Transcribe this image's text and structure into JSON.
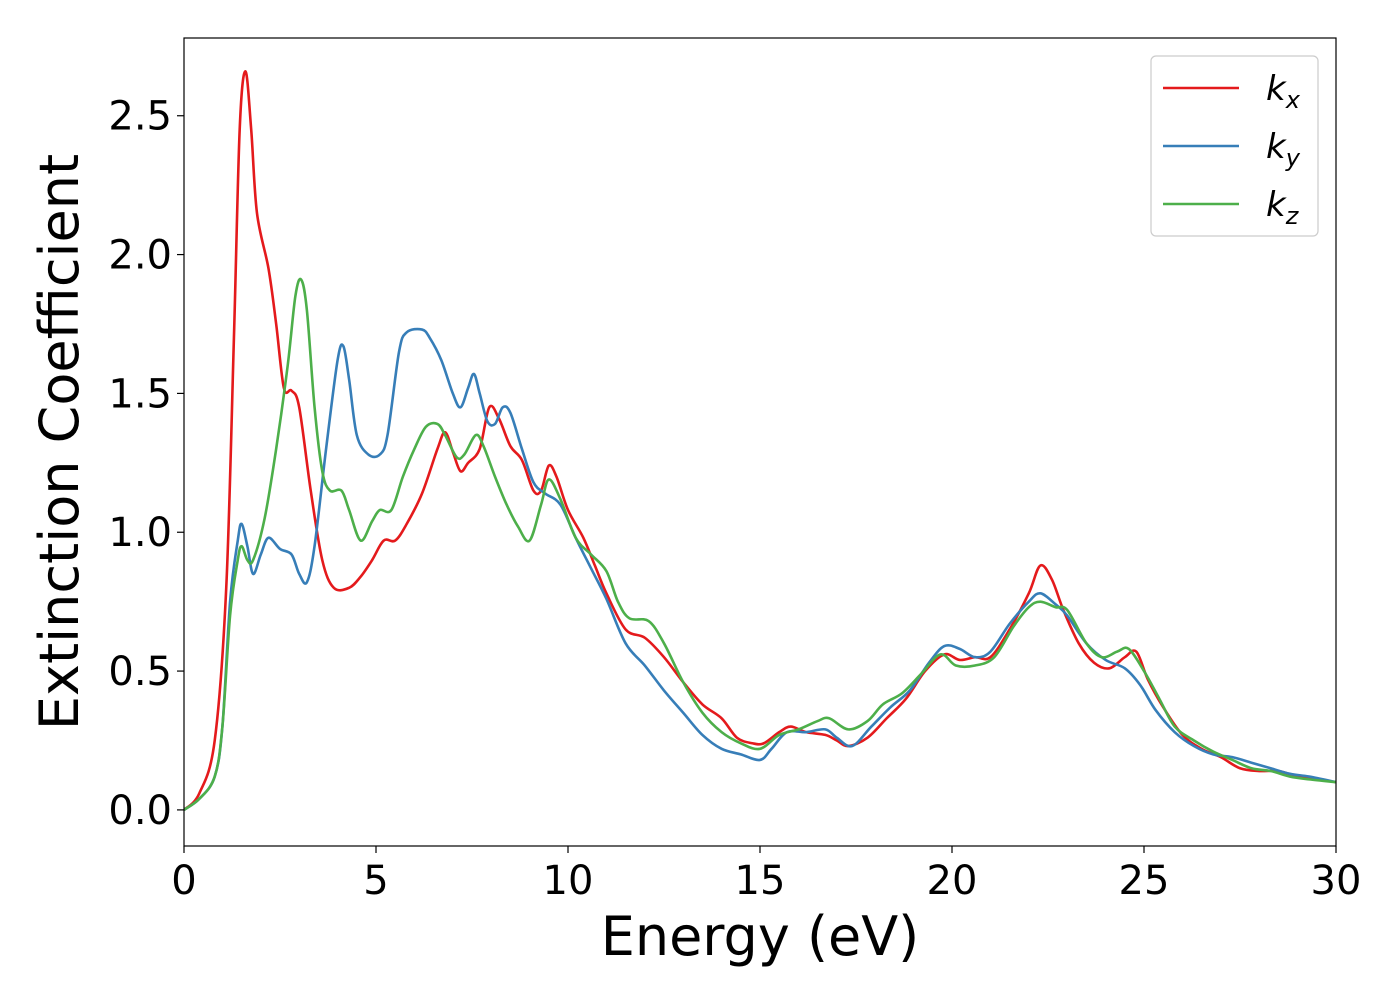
{
  "chart_data": {
    "type": "line",
    "xlabel": "Energy (eV)",
    "ylabel": "Extinction Coefficient",
    "xlim": [
      0,
      30
    ],
    "ylim": [
      -0.13,
      2.78
    ],
    "xticks": [
      0,
      5,
      10,
      15,
      20,
      25,
      30
    ],
    "xtick_labels": [
      "0",
      "5",
      "10",
      "15",
      "20",
      "25",
      "30"
    ],
    "yticks": [
      0.0,
      0.5,
      1.0,
      1.5,
      2.0,
      2.5
    ],
    "ytick_labels": [
      "0.0",
      "0.5",
      "1.0",
      "1.5",
      "2.0",
      "2.5"
    ],
    "grid": false,
    "legend_position": "top-right",
    "series": [
      {
        "name": "k",
        "subscript": "x",
        "color": "#e41a1c",
        "points": [
          [
            0,
            0
          ],
          [
            0.4,
            0.06
          ],
          [
            0.8,
            0.25
          ],
          [
            1.1,
            0.8
          ],
          [
            1.3,
            1.7
          ],
          [
            1.45,
            2.45
          ],
          [
            1.6,
            2.66
          ],
          [
            1.75,
            2.45
          ],
          [
            1.9,
            2.15
          ],
          [
            2.2,
            1.95
          ],
          [
            2.4,
            1.75
          ],
          [
            2.6,
            1.52
          ],
          [
            2.8,
            1.51
          ],
          [
            3.0,
            1.45
          ],
          [
            3.3,
            1.15
          ],
          [
            3.6,
            0.9
          ],
          [
            3.9,
            0.8
          ],
          [
            4.3,
            0.8
          ],
          [
            4.6,
            0.84
          ],
          [
            4.9,
            0.9
          ],
          [
            5.2,
            0.97
          ],
          [
            5.5,
            0.97
          ],
          [
            5.8,
            1.03
          ],
          [
            6.2,
            1.14
          ],
          [
            6.6,
            1.3
          ],
          [
            6.8,
            1.36
          ],
          [
            7.0,
            1.29
          ],
          [
            7.2,
            1.22
          ],
          [
            7.4,
            1.25
          ],
          [
            7.7,
            1.3
          ],
          [
            7.95,
            1.45
          ],
          [
            8.2,
            1.41
          ],
          [
            8.5,
            1.31
          ],
          [
            8.8,
            1.26
          ],
          [
            9.1,
            1.15
          ],
          [
            9.3,
            1.15
          ],
          [
            9.5,
            1.24
          ],
          [
            9.7,
            1.2
          ],
          [
            10.0,
            1.08
          ],
          [
            10.4,
            0.98
          ],
          [
            10.7,
            0.88
          ],
          [
            11.0,
            0.78
          ],
          [
            11.5,
            0.65
          ],
          [
            12.0,
            0.62
          ],
          [
            12.5,
            0.55
          ],
          [
            13.0,
            0.46
          ],
          [
            13.5,
            0.38
          ],
          [
            14.0,
            0.33
          ],
          [
            14.4,
            0.26
          ],
          [
            14.8,
            0.24
          ],
          [
            15.1,
            0.24
          ],
          [
            15.5,
            0.28
          ],
          [
            15.8,
            0.3
          ],
          [
            16.2,
            0.28
          ],
          [
            16.7,
            0.27
          ],
          [
            17.0,
            0.25
          ],
          [
            17.3,
            0.23
          ],
          [
            17.8,
            0.26
          ],
          [
            18.3,
            0.33
          ],
          [
            18.8,
            0.4
          ],
          [
            19.3,
            0.5
          ],
          [
            19.8,
            0.56
          ],
          [
            20.2,
            0.54
          ],
          [
            20.6,
            0.55
          ],
          [
            21.0,
            0.55
          ],
          [
            21.5,
            0.65
          ],
          [
            22.0,
            0.78
          ],
          [
            22.3,
            0.88
          ],
          [
            22.6,
            0.83
          ],
          [
            22.9,
            0.72
          ],
          [
            23.3,
            0.6
          ],
          [
            23.7,
            0.53
          ],
          [
            24.1,
            0.51
          ],
          [
            24.5,
            0.55
          ],
          [
            24.8,
            0.57
          ],
          [
            25.1,
            0.47
          ],
          [
            25.5,
            0.37
          ],
          [
            26.0,
            0.27
          ],
          [
            26.5,
            0.22
          ],
          [
            27.0,
            0.19
          ],
          [
            27.5,
            0.15
          ],
          [
            28.0,
            0.14
          ],
          [
            28.5,
            0.14
          ],
          [
            29.0,
            0.12
          ],
          [
            29.5,
            0.11
          ],
          [
            30,
            0.1
          ]
        ]
      },
      {
        "name": "k",
        "subscript": "y",
        "color": "#377eb8",
        "points": [
          [
            0,
            0
          ],
          [
            0.4,
            0.04
          ],
          [
            0.8,
            0.12
          ],
          [
            1.0,
            0.3
          ],
          [
            1.2,
            0.75
          ],
          [
            1.4,
            0.97
          ],
          [
            1.5,
            1.03
          ],
          [
            1.65,
            0.95
          ],
          [
            1.8,
            0.85
          ],
          [
            2.0,
            0.92
          ],
          [
            2.2,
            0.98
          ],
          [
            2.5,
            0.94
          ],
          [
            2.8,
            0.92
          ],
          [
            3.0,
            0.85
          ],
          [
            3.2,
            0.82
          ],
          [
            3.4,
            0.95
          ],
          [
            3.7,
            1.3
          ],
          [
            4.0,
            1.62
          ],
          [
            4.15,
            1.67
          ],
          [
            4.3,
            1.55
          ],
          [
            4.5,
            1.35
          ],
          [
            4.8,
            1.28
          ],
          [
            5.1,
            1.28
          ],
          [
            5.3,
            1.35
          ],
          [
            5.6,
            1.65
          ],
          [
            5.8,
            1.72
          ],
          [
            6.2,
            1.73
          ],
          [
            6.4,
            1.7
          ],
          [
            6.7,
            1.62
          ],
          [
            7.0,
            1.5
          ],
          [
            7.2,
            1.45
          ],
          [
            7.4,
            1.52
          ],
          [
            7.55,
            1.57
          ],
          [
            7.7,
            1.5
          ],
          [
            7.9,
            1.4
          ],
          [
            8.1,
            1.39
          ],
          [
            8.3,
            1.45
          ],
          [
            8.5,
            1.43
          ],
          [
            8.8,
            1.3
          ],
          [
            9.1,
            1.18
          ],
          [
            9.4,
            1.14
          ],
          [
            9.8,
            1.1
          ],
          [
            10.2,
            0.98
          ],
          [
            10.6,
            0.87
          ],
          [
            11.0,
            0.76
          ],
          [
            11.5,
            0.6
          ],
          [
            12.0,
            0.52
          ],
          [
            12.5,
            0.43
          ],
          [
            13.0,
            0.35
          ],
          [
            13.5,
            0.27
          ],
          [
            14.0,
            0.22
          ],
          [
            14.5,
            0.2
          ],
          [
            15.0,
            0.18
          ],
          [
            15.3,
            0.22
          ],
          [
            15.7,
            0.28
          ],
          [
            16.2,
            0.28
          ],
          [
            16.7,
            0.29
          ],
          [
            17.0,
            0.26
          ],
          [
            17.4,
            0.23
          ],
          [
            17.9,
            0.3
          ],
          [
            18.4,
            0.37
          ],
          [
            18.9,
            0.43
          ],
          [
            19.4,
            0.53
          ],
          [
            19.8,
            0.59
          ],
          [
            20.2,
            0.58
          ],
          [
            20.6,
            0.55
          ],
          [
            21.0,
            0.57
          ],
          [
            21.5,
            0.67
          ],
          [
            22.0,
            0.75
          ],
          [
            22.3,
            0.78
          ],
          [
            22.7,
            0.74
          ],
          [
            23.0,
            0.7
          ],
          [
            23.5,
            0.6
          ],
          [
            24.0,
            0.54
          ],
          [
            24.5,
            0.51
          ],
          [
            24.9,
            0.45
          ],
          [
            25.3,
            0.36
          ],
          [
            25.8,
            0.28
          ],
          [
            26.3,
            0.23
          ],
          [
            26.8,
            0.2
          ],
          [
            27.3,
            0.19
          ],
          [
            27.8,
            0.17
          ],
          [
            28.3,
            0.15
          ],
          [
            28.8,
            0.13
          ],
          [
            29.3,
            0.12
          ],
          [
            30,
            0.1
          ]
        ]
      },
      {
        "name": "k",
        "subscript": "z",
        "color": "#4daf4a",
        "points": [
          [
            0,
            0
          ],
          [
            0.4,
            0.04
          ],
          [
            0.8,
            0.12
          ],
          [
            1.0,
            0.3
          ],
          [
            1.2,
            0.7
          ],
          [
            1.4,
            0.9
          ],
          [
            1.5,
            0.95
          ],
          [
            1.65,
            0.9
          ],
          [
            1.8,
            0.9
          ],
          [
            2.1,
            1.05
          ],
          [
            2.4,
            1.3
          ],
          [
            2.7,
            1.6
          ],
          [
            2.9,
            1.85
          ],
          [
            3.05,
            1.91
          ],
          [
            3.2,
            1.8
          ],
          [
            3.4,
            1.45
          ],
          [
            3.6,
            1.22
          ],
          [
            3.8,
            1.15
          ],
          [
            4.1,
            1.15
          ],
          [
            4.3,
            1.08
          ],
          [
            4.6,
            0.97
          ],
          [
            4.9,
            1.04
          ],
          [
            5.1,
            1.08
          ],
          [
            5.4,
            1.08
          ],
          [
            5.7,
            1.2
          ],
          [
            6.0,
            1.3
          ],
          [
            6.3,
            1.38
          ],
          [
            6.6,
            1.39
          ],
          [
            6.8,
            1.35
          ],
          [
            7.1,
            1.27
          ],
          [
            7.3,
            1.28
          ],
          [
            7.6,
            1.35
          ],
          [
            7.8,
            1.31
          ],
          [
            8.1,
            1.2
          ],
          [
            8.4,
            1.1
          ],
          [
            8.7,
            1.02
          ],
          [
            9.0,
            0.97
          ],
          [
            9.3,
            1.1
          ],
          [
            9.5,
            1.19
          ],
          [
            9.8,
            1.12
          ],
          [
            10.2,
            0.98
          ],
          [
            10.6,
            0.92
          ],
          [
            11.0,
            0.86
          ],
          [
            11.3,
            0.75
          ],
          [
            11.6,
            0.69
          ],
          [
            12.1,
            0.68
          ],
          [
            12.5,
            0.6
          ],
          [
            13.0,
            0.46
          ],
          [
            13.5,
            0.35
          ],
          [
            14.0,
            0.28
          ],
          [
            14.5,
            0.24
          ],
          [
            15.0,
            0.22
          ],
          [
            15.5,
            0.27
          ],
          [
            16.0,
            0.29
          ],
          [
            16.5,
            0.32
          ],
          [
            16.8,
            0.33
          ],
          [
            17.3,
            0.29
          ],
          [
            17.8,
            0.32
          ],
          [
            18.2,
            0.38
          ],
          [
            18.7,
            0.42
          ],
          [
            19.2,
            0.49
          ],
          [
            19.7,
            0.56
          ],
          [
            20.1,
            0.52
          ],
          [
            20.6,
            0.52
          ],
          [
            21.1,
            0.55
          ],
          [
            21.6,
            0.66
          ],
          [
            22.0,
            0.73
          ],
          [
            22.3,
            0.75
          ],
          [
            22.7,
            0.73
          ],
          [
            23.0,
            0.72
          ],
          [
            23.5,
            0.6
          ],
          [
            23.9,
            0.55
          ],
          [
            24.3,
            0.57
          ],
          [
            24.6,
            0.58
          ],
          [
            25.0,
            0.5
          ],
          [
            25.4,
            0.4
          ],
          [
            25.8,
            0.3
          ],
          [
            26.3,
            0.25
          ],
          [
            26.8,
            0.21
          ],
          [
            27.3,
            0.18
          ],
          [
            27.8,
            0.15
          ],
          [
            28.3,
            0.14
          ],
          [
            28.8,
            0.12
          ],
          [
            29.3,
            0.11
          ],
          [
            30,
            0.1
          ]
        ]
      }
    ]
  }
}
